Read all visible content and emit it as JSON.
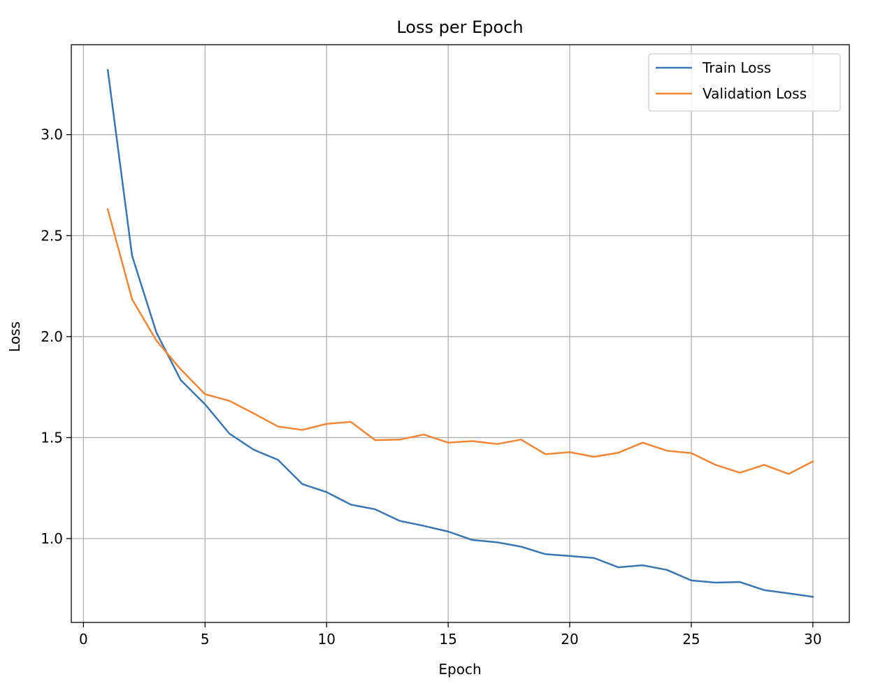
{
  "chart_data": {
    "type": "line",
    "title": "Loss per Epoch",
    "xlabel": "Epoch",
    "ylabel": "Loss",
    "xlim": [
      -0.5,
      31.5
    ],
    "ylim": [
      0.585,
      3.445
    ],
    "xticks": [
      0,
      5,
      10,
      15,
      20,
      25,
      30
    ],
    "yticks": [
      1.0,
      1.5,
      2.0,
      2.5,
      3.0
    ],
    "grid": true,
    "legend_position": "top-right",
    "x": [
      1,
      2,
      3,
      4,
      5,
      6,
      7,
      8,
      9,
      10,
      11,
      12,
      13,
      14,
      15,
      16,
      17,
      18,
      19,
      20,
      21,
      22,
      23,
      24,
      25,
      26,
      27,
      28,
      29,
      30
    ],
    "series": [
      {
        "name": "Train Loss",
        "color": "#3a75b0",
        "values": [
          3.32,
          2.4,
          2.02,
          1.785,
          1.665,
          1.52,
          1.44,
          1.39,
          1.27,
          1.23,
          1.168,
          1.145,
          1.088,
          1.063,
          1.035,
          0.993,
          0.982,
          0.96,
          0.923,
          0.914,
          0.904,
          0.858,
          0.868,
          0.845,
          0.793,
          0.782,
          0.785,
          0.745,
          0.729,
          0.712
        ]
      },
      {
        "name": "Validation Loss",
        "color": "#ef8636",
        "values": [
          2.63,
          2.185,
          1.98,
          1.838,
          1.715,
          1.682,
          1.62,
          1.555,
          1.538,
          1.568,
          1.578,
          1.487,
          1.49,
          1.515,
          1.475,
          1.483,
          1.468,
          1.49,
          1.418,
          1.428,
          1.405,
          1.425,
          1.475,
          1.435,
          1.423,
          1.365,
          1.326,
          1.365,
          1.32,
          1.382
        ]
      }
    ]
  }
}
